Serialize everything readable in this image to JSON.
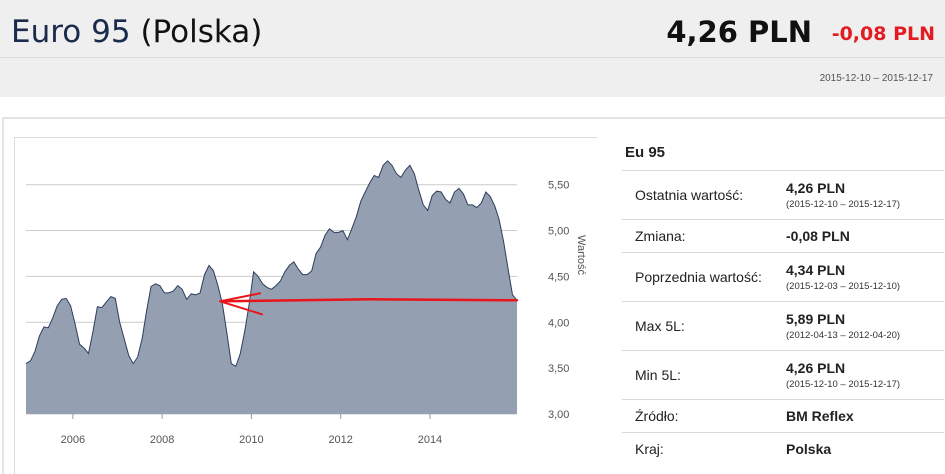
{
  "header": {
    "fuel": "Euro 95",
    "country": "(Polska)",
    "price": "4,26 PLN",
    "change": "-0,08 PLN",
    "date_range": "2015-12-10 – 2015-12-17"
  },
  "sidebar": {
    "title": "Eu 95",
    "rows": [
      {
        "label": "Ostatnia wartość:",
        "value": "4,26 PLN",
        "sub": "(2015-12-10 – 2015-12-17)"
      },
      {
        "label": "Zmiana:",
        "value": "-0,08 PLN",
        "sub": ""
      },
      {
        "label": "Poprzednia wartość:",
        "value": "4,34 PLN",
        "sub": "(2015-12-03 – 2015-12-10)"
      },
      {
        "label": "Max 5L:",
        "value": "5,89 PLN",
        "sub": "(2012-04-13 – 2012-04-20)"
      },
      {
        "label": "Min 5L:",
        "value": "4,26 PLN",
        "sub": "(2015-12-10 – 2015-12-17)"
      },
      {
        "label": "Źródło:",
        "value": "BM Reflex",
        "sub": ""
      },
      {
        "label": "Kraj:",
        "value": "Polska",
        "sub": ""
      }
    ]
  },
  "colors": {
    "area_fill": "#949fb2",
    "area_line": "#2d3e5c",
    "arrow": "#e8151b",
    "change": "#e31b23",
    "grid": "#cccccc"
  },
  "chart_data": {
    "type": "area",
    "ylabel": "Wartość",
    "y_ticks": [
      "3,00",
      "3,50",
      "4,00",
      "4,50",
      "5,00",
      "5,50"
    ],
    "x_ticks": [
      "2006",
      "2008",
      "2010",
      "2012",
      "2014"
    ],
    "ylim": [
      3.0,
      5.9
    ],
    "xlim": [
      2004.95,
      2015.95
    ],
    "grid": "horizontal",
    "x": [
      2004.95,
      2005.05,
      2005.15,
      2005.25,
      2005.35,
      2005.45,
      2005.55,
      2005.65,
      2005.75,
      2005.85,
      2005.95,
      2006.05,
      2006.15,
      2006.25,
      2006.35,
      2006.45,
      2006.55,
      2006.65,
      2006.75,
      2006.85,
      2006.95,
      2007.05,
      2007.15,
      2007.25,
      2007.35,
      2007.45,
      2007.55,
      2007.65,
      2007.75,
      2007.85,
      2007.95,
      2008.05,
      2008.15,
      2008.25,
      2008.35,
      2008.45,
      2008.55,
      2008.65,
      2008.75,
      2008.85,
      2008.95,
      2009.05,
      2009.15,
      2009.25,
      2009.35,
      2009.45,
      2009.55,
      2009.65,
      2009.75,
      2009.85,
      2009.95,
      2010.05,
      2010.15,
      2010.25,
      2010.35,
      2010.45,
      2010.55,
      2010.65,
      2010.75,
      2010.85,
      2010.95,
      2011.05,
      2011.15,
      2011.25,
      2011.35,
      2011.45,
      2011.55,
      2011.65,
      2011.75,
      2011.85,
      2011.95,
      2012.05,
      2012.15,
      2012.25,
      2012.35,
      2012.45,
      2012.55,
      2012.65,
      2012.75,
      2012.85,
      2012.95,
      2013.05,
      2013.15,
      2013.25,
      2013.35,
      2013.45,
      2013.55,
      2013.65,
      2013.75,
      2013.85,
      2013.95,
      2014.05,
      2014.15,
      2014.25,
      2014.35,
      2014.45,
      2014.55,
      2014.65,
      2014.75,
      2014.85,
      2014.95,
      2015.05,
      2015.15,
      2015.25,
      2015.35,
      2015.45,
      2015.55,
      2015.65,
      2015.75,
      2015.85,
      2015.95
    ],
    "values": [
      3.55,
      3.58,
      3.68,
      3.85,
      3.95,
      3.94,
      4.05,
      4.18,
      4.25,
      4.26,
      4.18,
      3.98,
      3.76,
      3.72,
      3.66,
      3.9,
      4.17,
      4.16,
      4.22,
      4.28,
      4.26,
      4.0,
      3.82,
      3.64,
      3.55,
      3.62,
      3.82,
      4.12,
      4.39,
      4.42,
      4.4,
      4.32,
      4.32,
      4.34,
      4.4,
      4.36,
      4.25,
      4.31,
      4.3,
      4.32,
      4.52,
      4.62,
      4.56,
      4.4,
      4.2,
      3.88,
      3.55,
      3.52,
      3.66,
      3.9,
      4.2,
      4.55,
      4.5,
      4.42,
      4.38,
      4.36,
      4.4,
      4.45,
      4.55,
      4.62,
      4.66,
      4.58,
      4.52,
      4.52,
      4.56,
      4.75,
      4.82,
      4.95,
      5.02,
      4.98,
      4.98,
      5.0,
      4.9,
      5.02,
      5.15,
      5.32,
      5.42,
      5.52,
      5.6,
      5.58,
      5.71,
      5.76,
      5.71,
      5.62,
      5.58,
      5.66,
      5.71,
      5.62,
      5.44,
      5.28,
      5.22,
      5.38,
      5.43,
      5.42,
      5.34,
      5.3,
      5.42,
      5.46,
      5.4,
      5.28,
      5.28,
      5.25,
      5.3,
      5.42,
      5.37,
      5.27,
      5.12,
      4.88,
      4.58,
      4.3,
      4.24
    ]
  }
}
